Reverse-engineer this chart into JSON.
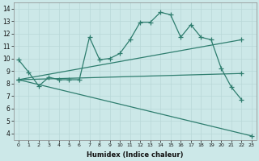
{
  "xlabel": "Humidex (Indice chaleur)",
  "bg_color": "#cce8e8",
  "grid_color": "#b8d8d8",
  "line_color": "#2e7d6e",
  "xlim": [
    -0.5,
    23.5
  ],
  "ylim": [
    3.5,
    14.5
  ],
  "xticks": [
    0,
    1,
    2,
    3,
    4,
    5,
    6,
    7,
    8,
    9,
    10,
    11,
    12,
    13,
    14,
    15,
    16,
    17,
    18,
    19,
    20,
    21,
    22,
    23
  ],
  "yticks": [
    4,
    5,
    6,
    7,
    8,
    9,
    10,
    11,
    12,
    13,
    14
  ],
  "line1_x": [
    0,
    1,
    2,
    3,
    4,
    5,
    6,
    7,
    8,
    9,
    10,
    11,
    12,
    13,
    14,
    15,
    16,
    17,
    18,
    19,
    20,
    21,
    22
  ],
  "line1_y": [
    9.9,
    8.9,
    7.8,
    8.5,
    8.3,
    8.3,
    8.3,
    11.7,
    9.9,
    10.0,
    10.4,
    11.5,
    12.9,
    12.9,
    13.7,
    13.5,
    11.7,
    12.7,
    11.7,
    11.5,
    9.2,
    7.7,
    6.7
  ],
  "line2_x": [
    0,
    4,
    22
  ],
  "line2_y": [
    8.3,
    8.3,
    11.5
  ],
  "line3_x": [
    0,
    4,
    22
  ],
  "line3_y": [
    8.3,
    8.3,
    8.8
  ],
  "line4_x": [
    4,
    22,
    23
  ],
  "line4_y": [
    8.3,
    3.8,
    3.8
  ]
}
